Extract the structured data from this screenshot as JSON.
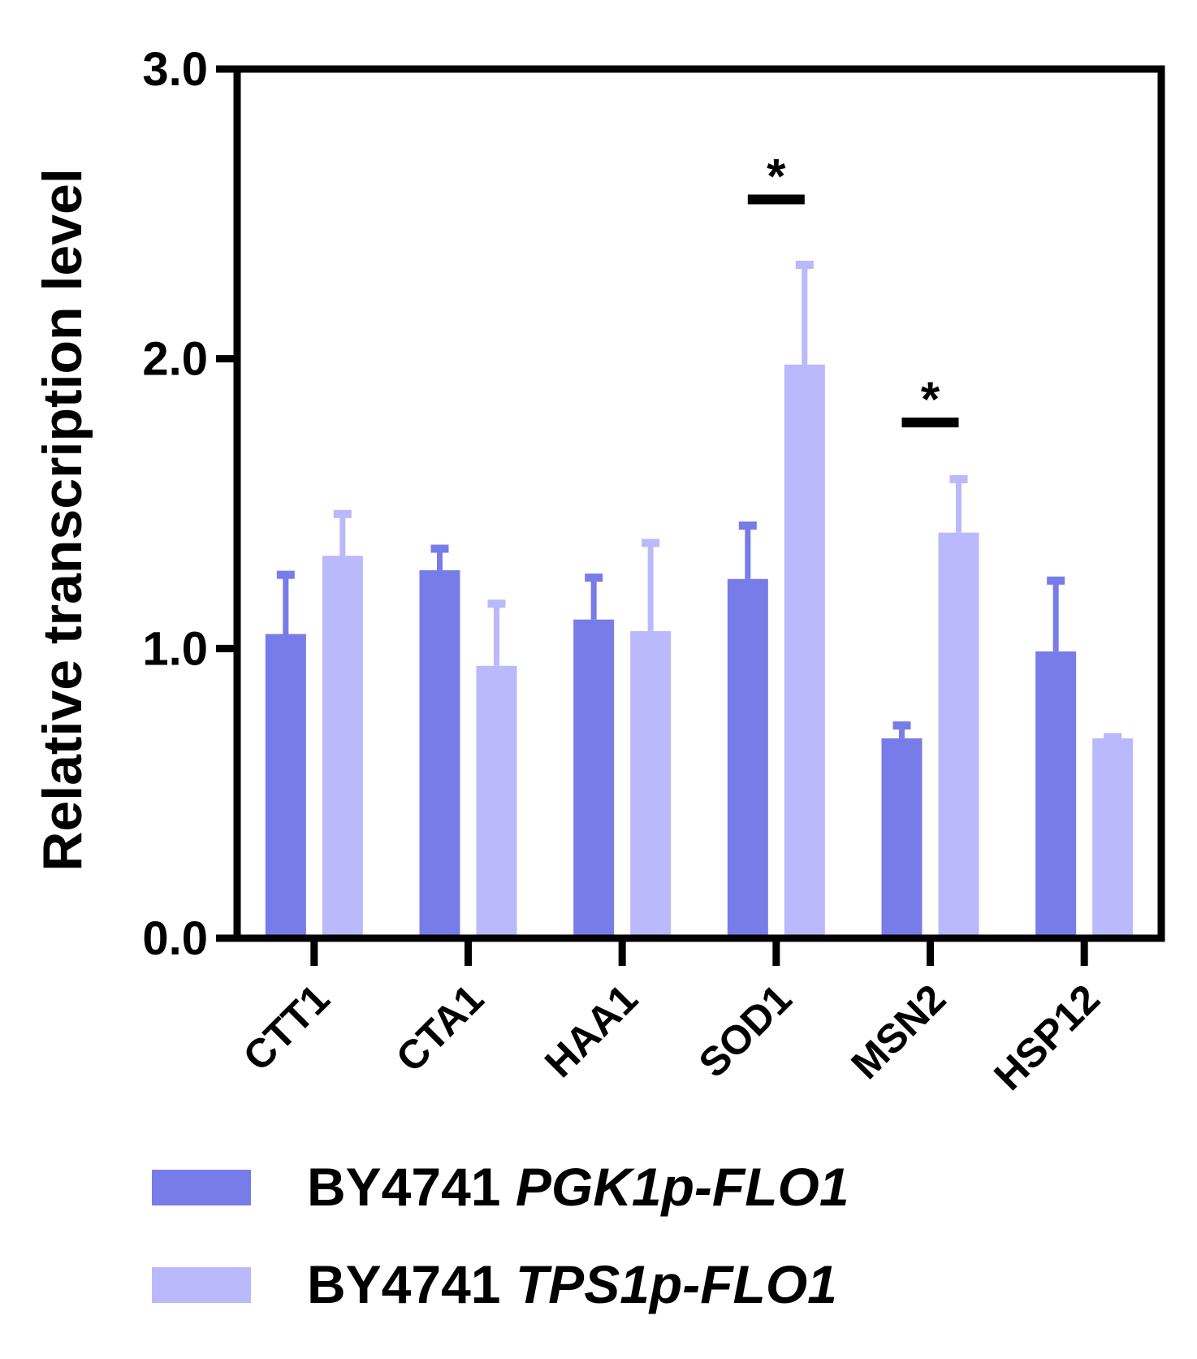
{
  "chart_data": {
    "type": "bar",
    "title": "",
    "xlabel": "",
    "ylabel": "Relative transcription level",
    "ylim": [
      0,
      3
    ],
    "yticks": [
      "0.0",
      "1.0",
      "2.0",
      "3.0"
    ],
    "categories": [
      "CTT1",
      "CTA1",
      "HAA1",
      "SOD1",
      "MSN2",
      "HSP12"
    ],
    "series": [
      {
        "name_prefix": "BY4741",
        "name_italic": "PGK1p-FLO1",
        "color": "#777ce9",
        "values": [
          1.05,
          1.27,
          1.1,
          1.24,
          0.69,
          0.99
        ],
        "errors": [
          0.21,
          0.08,
          0.15,
          0.19,
          0.05,
          0.25
        ]
      },
      {
        "name_prefix": "BY4741",
        "name_italic": "TPS1p-FLO1",
        "color": "#b9b9fb",
        "values": [
          1.32,
          0.94,
          1.06,
          1.98,
          1.4,
          0.69
        ],
        "errors": [
          0.15,
          0.22,
          0.31,
          0.35,
          0.19,
          0.01
        ]
      }
    ],
    "significance": [
      {
        "category": "SOD1",
        "label": "*",
        "level": 2.55
      },
      {
        "category": "MSN2",
        "label": "*",
        "level": 1.78
      }
    ],
    "legend_position": "bottom",
    "grid": false
  }
}
